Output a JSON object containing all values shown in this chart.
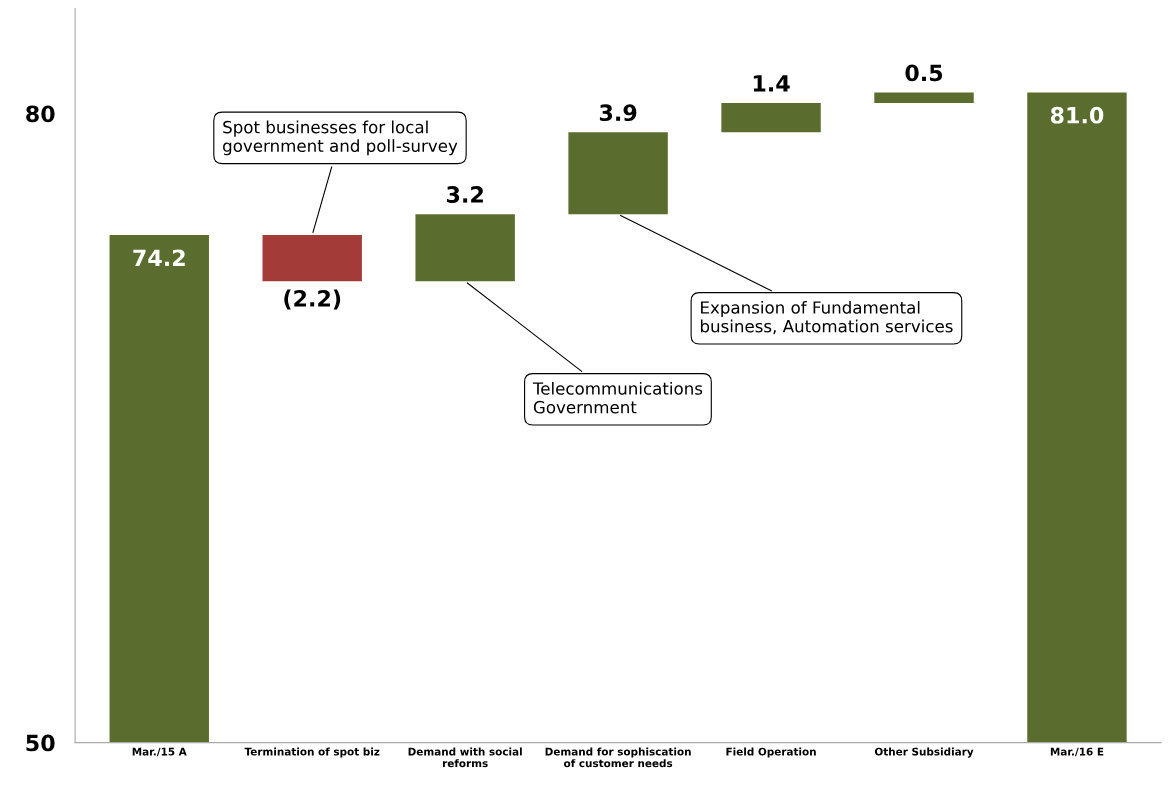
{
  "chart_data": {
    "type": "bar",
    "categories": [
      "Mar./15 A",
      "Termination of spot biz",
      "Demand with social\nreforms",
      "Demand for sophiscation\nof customer needs",
      "Field Operation",
      "Other Subsidiary",
      "Mar./16 E"
    ],
    "values": [
      74.2,
      -2.2,
      3.2,
      3.9,
      1.4,
      0.5,
      81.0
    ],
    "base": [
      null,
      74.2,
      72.0,
      75.2,
      79.1,
      80.5,
      null
    ],
    "colors": [
      "#5b6d2e",
      "#a33b38",
      "#5b6d2e",
      "#5b6d2e",
      "#5b6d2e",
      "#5b6d2e",
      "#5b6d2e"
    ],
    "value_labels": [
      "74.2",
      "(2.2)",
      "3.2",
      "3.9",
      "1.4",
      "0.5",
      "81.0"
    ],
    "ylim": [
      50,
      85
    ],
    "yticks": [
      50,
      80
    ],
    "grid": false,
    "legend": false,
    "annotations": [
      {
        "text": "Spot businesses for local\ngovernment and poll-survey",
        "x": "Termination of spot biz",
        "y": 74.2
      },
      {
        "text": "Telecommunications\nGovernment",
        "x": "Demand with social\nreforms",
        "y": 72.0
      },
      {
        "text": "Expansion of Fundamental\nbusiness, Automation services",
        "x": "Demand for sophiscation\nof customer needs",
        "y": 75.2
      }
    ]
  }
}
